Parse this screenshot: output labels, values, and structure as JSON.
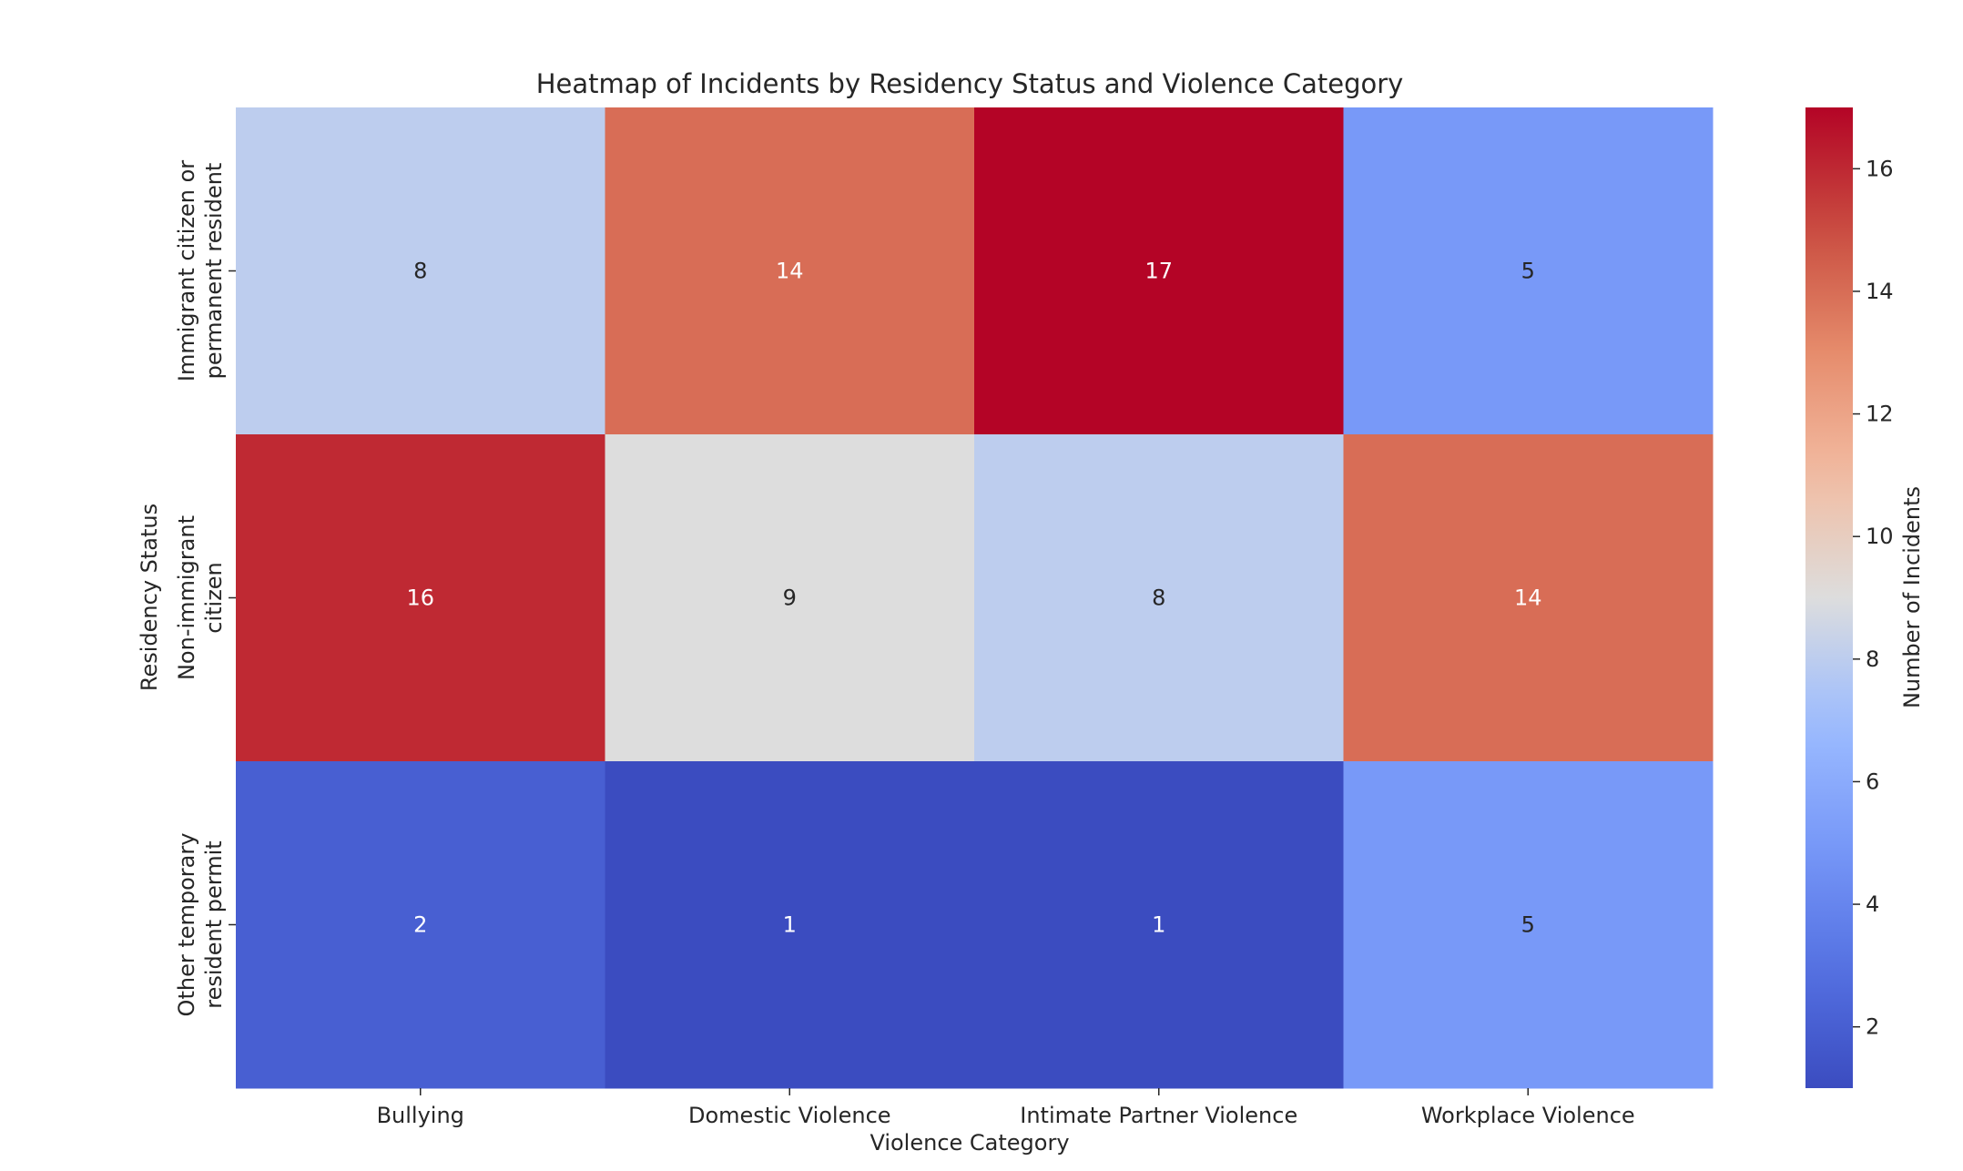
{
  "chart_data": {
    "type": "heatmap",
    "title": "Heatmap of Incidents by Residency Status and Violence Category",
    "xlabel": "Violence Category",
    "ylabel": "Residency Status",
    "x_categories": [
      "Bullying",
      "Domestic Violence",
      "Intimate Partner Violence",
      "Workplace Violence"
    ],
    "y_categories": [
      [
        "Immigrant citizen or",
        "permanent resident"
      ],
      [
        "Non-immigrant",
        "citizen"
      ],
      [
        "Other temporary",
        "resident permit"
      ]
    ],
    "values": [
      [
        8,
        14,
        17,
        5
      ],
      [
        16,
        9,
        8,
        14
      ],
      [
        2,
        1,
        1,
        5
      ]
    ],
    "annotated": true,
    "colormap": "coolwarm",
    "vmin": 1,
    "vmax": 17,
    "colorbar": {
      "label": "Number of Incidents",
      "ticks": [
        2,
        4,
        6,
        8,
        10,
        12,
        14,
        16
      ]
    }
  }
}
